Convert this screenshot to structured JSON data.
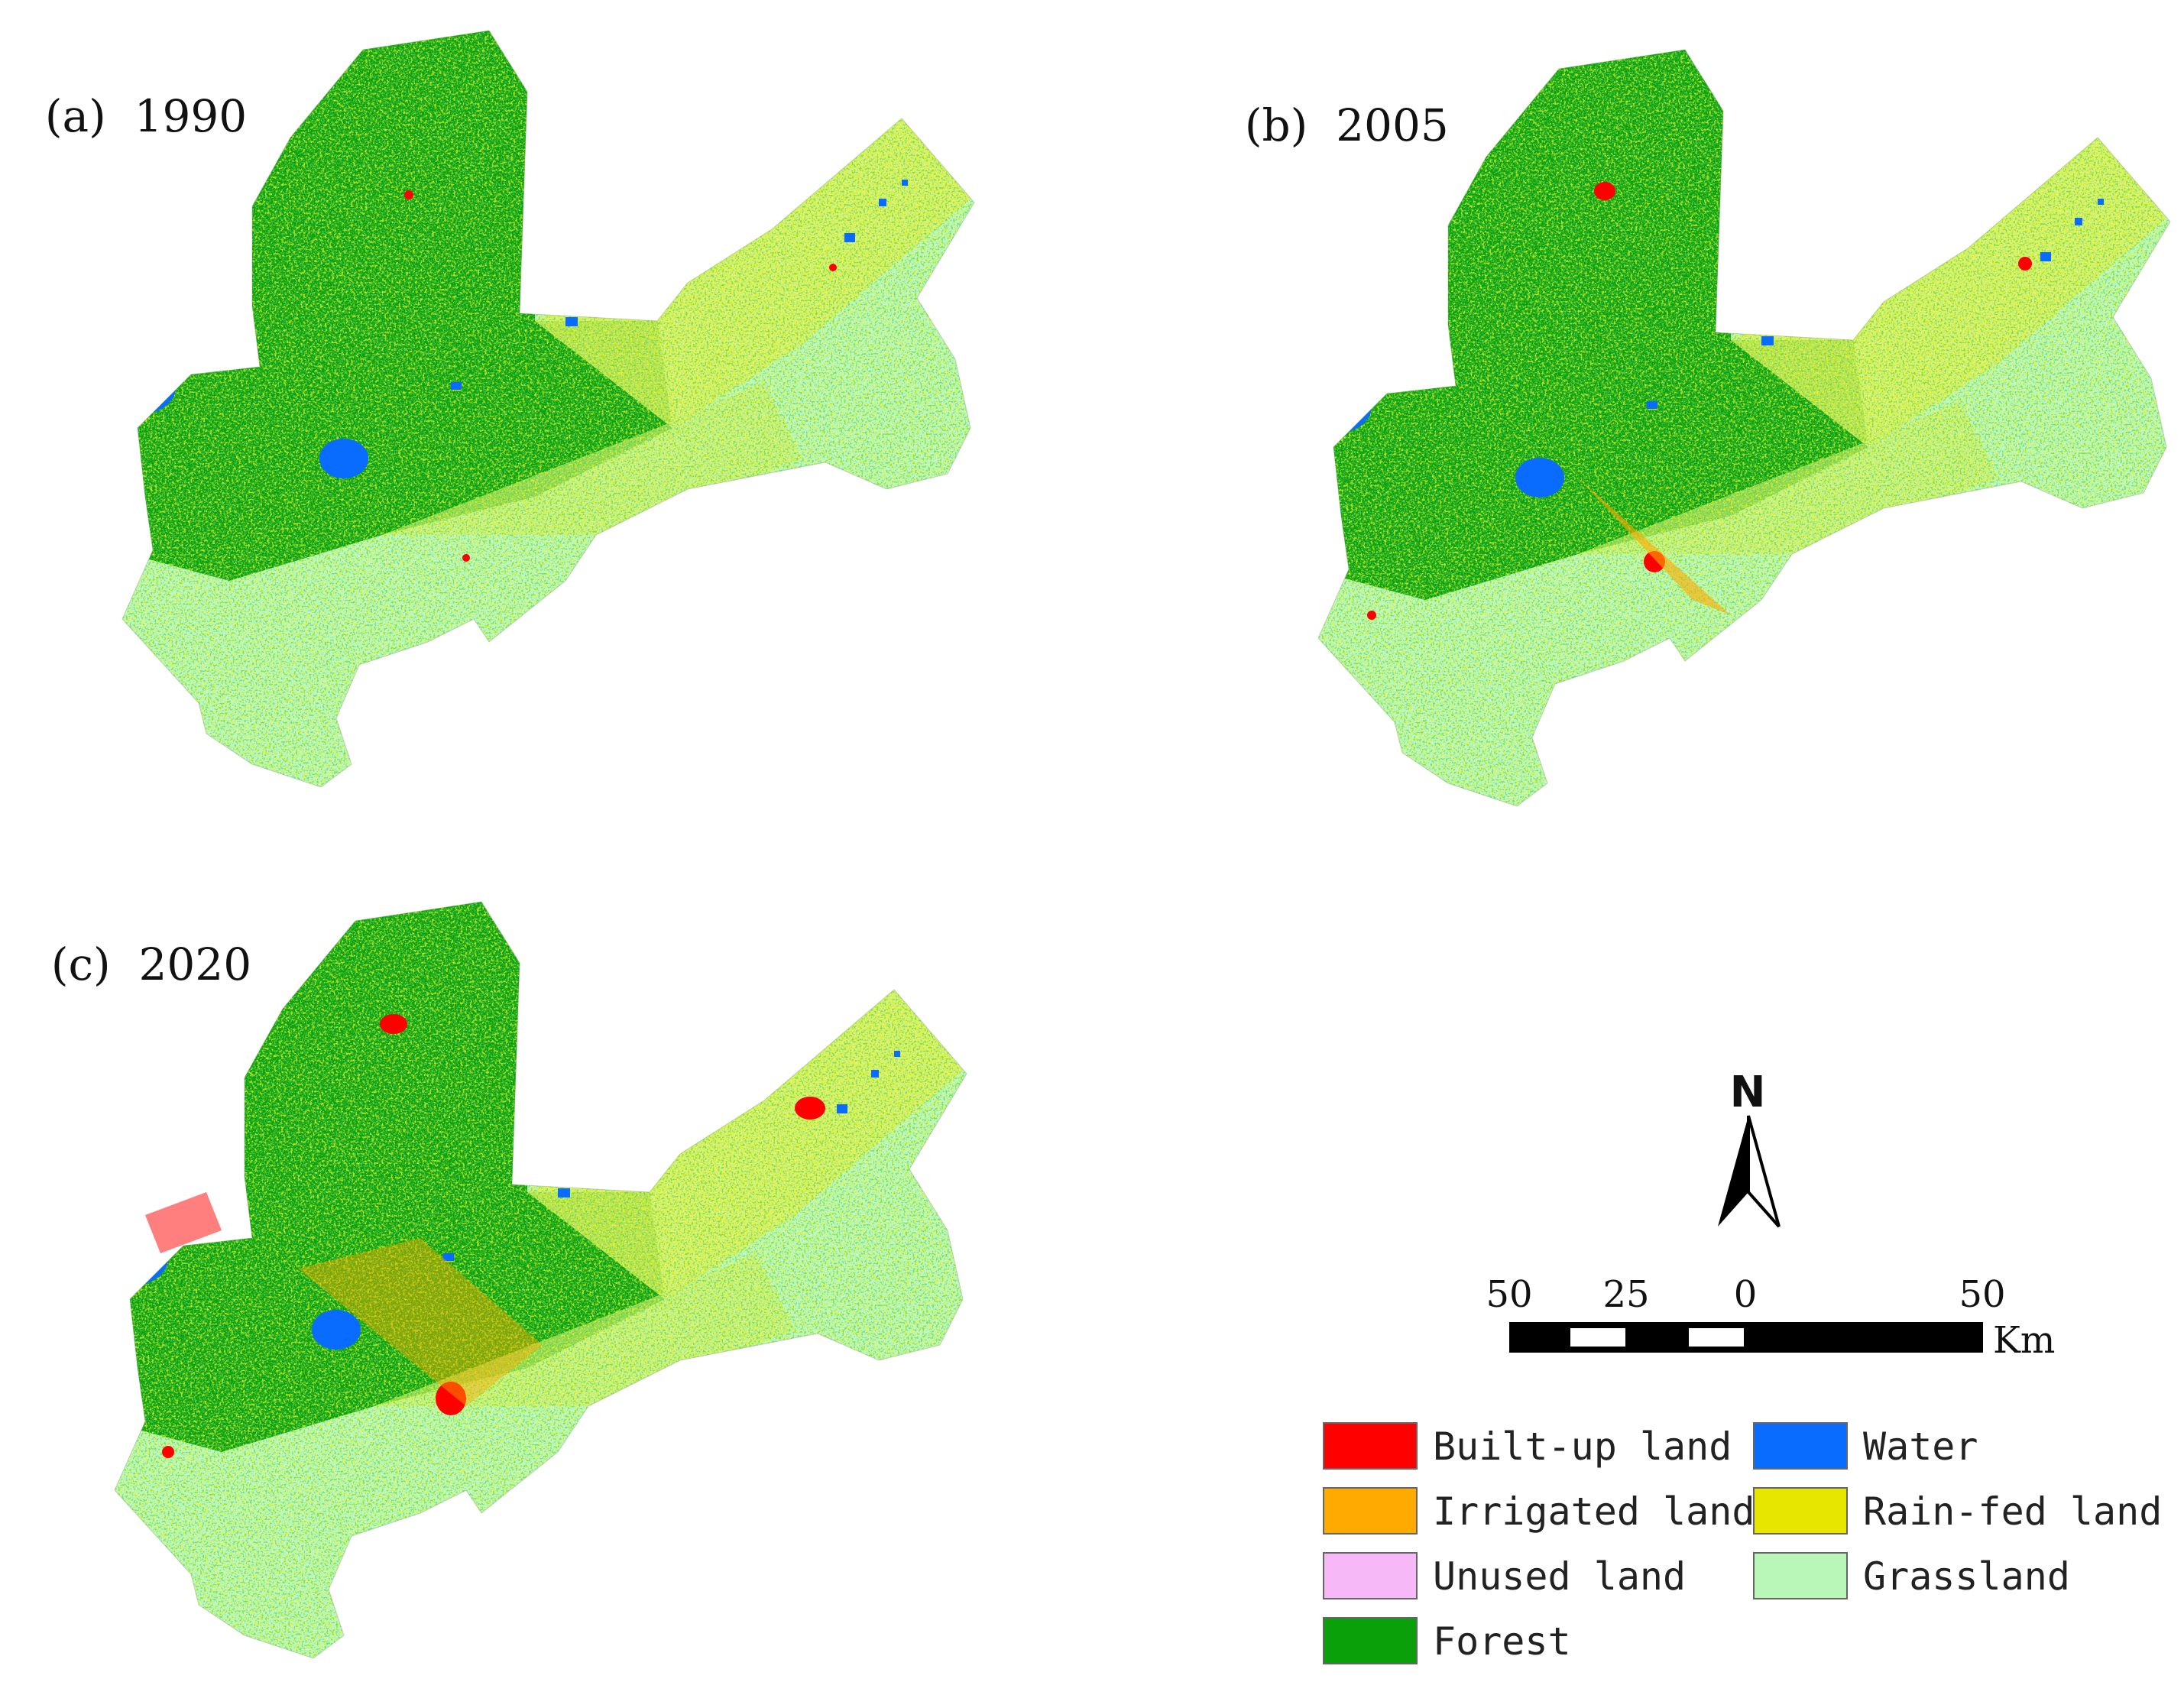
{
  "panels": [
    {
      "label": "(a)",
      "year": "1990"
    },
    {
      "label": "(b)",
      "year": "2005"
    },
    {
      "label": "(c)",
      "year": "2020"
    }
  ],
  "north_arrow": {
    "label": "N"
  },
  "scale_bar": {
    "ticks": [
      "50",
      "25",
      "0",
      "50"
    ],
    "unit": "Km"
  },
  "legend": [
    {
      "key": "builtup",
      "label": "Built-up land",
      "color": "#ff0000"
    },
    {
      "key": "water",
      "label": "Water",
      "color": "#0a6cff"
    },
    {
      "key": "irrigated",
      "label": "Irrigated land",
      "color": "#ffaa00"
    },
    {
      "key": "rainfed",
      "label": "Rain-fed land",
      "color": "#e6e600"
    },
    {
      "key": "unused",
      "label": "Unused land",
      "color": "#f7b8f7"
    },
    {
      "key": "grassland",
      "label": "Grassland",
      "color": "#b8f7b8"
    },
    {
      "key": "forest",
      "label": "Forest",
      "color": "#0aa00a"
    }
  ]
}
